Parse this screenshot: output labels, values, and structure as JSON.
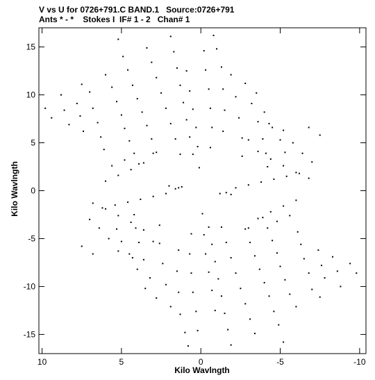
{
  "header": {
    "line1": "V vs U for 0726+791.C BAND.1   Source:0726+791",
    "line2": "Ants * - *    Stokes I  IF# 1 - 2   Chan# 1"
  },
  "chart_data": {
    "type": "scatter",
    "title": "V vs U for 0726+791.C BAND.1   Source:0726+791",
    "subtitle": "Ants * - *    Stokes I  IF# 1 - 2   Chan# 1",
    "xlabel": "Kilo Wavlngth",
    "ylabel": "Kilo Wavlngth",
    "xlim": [
      10.2,
      -10.4
    ],
    "ylim": [
      -17.0,
      17.0
    ],
    "x_reversed": true,
    "x_ticks": [
      10,
      5,
      0,
      -5,
      -10
    ],
    "y_ticks": [
      -15,
      -10,
      -5,
      0,
      5,
      10,
      15
    ],
    "grid": false,
    "marker": "small dot",
    "series": [
      {
        "values_note": "",
        "points": [
          [
            9.8,
            8.6
          ],
          [
            9.4,
            7.6
          ],
          [
            8.8,
            10.0
          ],
          [
            8.6,
            8.4
          ],
          [
            8.3,
            6.9
          ],
          [
            7.8,
            9.1
          ],
          [
            7.6,
            7.8
          ],
          [
            7.4,
            6.2
          ],
          [
            7.5,
            11.1
          ],
          [
            7.0,
            10.3
          ],
          [
            6.8,
            8.6
          ],
          [
            6.5,
            7.1
          ],
          [
            6.3,
            5.6
          ],
          [
            6.1,
            4.3
          ],
          [
            6.0,
            12.1
          ],
          [
            5.6,
            10.8
          ],
          [
            5.3,
            9.3
          ],
          [
            5.0,
            7.9
          ],
          [
            4.8,
            6.5
          ],
          [
            4.5,
            5.2
          ],
          [
            4.2,
            3.9
          ],
          [
            3.9,
            2.8
          ],
          [
            5.2,
            15.8
          ],
          [
            4.9,
            14.0
          ],
          [
            4.6,
            12.6
          ],
          [
            4.3,
            11.0
          ],
          [
            4.0,
            9.6
          ],
          [
            3.7,
            8.2
          ],
          [
            3.4,
            6.8
          ],
          [
            3.1,
            5.4
          ],
          [
            2.8,
            4.0
          ],
          [
            3.4,
            14.9
          ],
          [
            3.1,
            13.4
          ],
          [
            2.8,
            11.8
          ],
          [
            2.5,
            10.2
          ],
          [
            2.2,
            8.6
          ],
          [
            1.9,
            7.0
          ],
          [
            1.6,
            5.4
          ],
          [
            1.3,
            3.8
          ],
          [
            1.9,
            16.1
          ],
          [
            1.7,
            14.5
          ],
          [
            1.5,
            12.8
          ],
          [
            1.3,
            11.0
          ],
          [
            1.1,
            9.2
          ],
          [
            0.9,
            7.4
          ],
          [
            0.7,
            5.6
          ],
          [
            0.5,
            3.8
          ],
          [
            0.9,
            12.5
          ],
          [
            0.7,
            10.4
          ],
          [
            0.5,
            8.5
          ],
          [
            0.3,
            6.6
          ],
          [
            0.2,
            4.6
          ],
          [
            0.1,
            2.4
          ],
          [
            -0.2,
            14.6
          ],
          [
            -0.3,
            12.6
          ],
          [
            -0.5,
            10.6
          ],
          [
            -0.6,
            8.6
          ],
          [
            -0.7,
            6.6
          ],
          [
            -0.6,
            4.5
          ],
          [
            -0.8,
            16.2
          ],
          [
            -1.0,
            14.8
          ],
          [
            -1.3,
            12.9
          ],
          [
            -1.4,
            10.6
          ],
          [
            -1.5,
            8.4
          ],
          [
            -1.4,
            6.2
          ],
          [
            -1.9,
            12.1
          ],
          [
            -2.2,
            9.8
          ],
          [
            -2.4,
            7.6
          ],
          [
            -2.6,
            5.5
          ],
          [
            -2.6,
            3.6
          ],
          [
            -2.8,
            11.2
          ],
          [
            -3.2,
            9.1
          ],
          [
            -3.6,
            7.2
          ],
          [
            -3.9,
            5.4
          ],
          [
            -4.1,
            3.9
          ],
          [
            -4.2,
            2.5
          ],
          [
            -3.5,
            10.2
          ],
          [
            -4.0,
            8.2
          ],
          [
            -4.5,
            6.6
          ],
          [
            -5.0,
            5.3
          ],
          [
            -5.3,
            4.0
          ],
          [
            -4.3,
            7.0
          ],
          [
            -5.2,
            6.3
          ],
          [
            -5.8,
            5.0
          ],
          [
            -6.4,
            3.9
          ],
          [
            -7.0,
            3.0
          ],
          [
            -7.5,
            5.8
          ],
          [
            -6.8,
            6.6
          ],
          [
            -3.0,
            5.3
          ],
          [
            -3.6,
            4.1
          ],
          [
            -4.4,
            3.3
          ],
          [
            -5.2,
            2.6
          ],
          [
            -6.0,
            1.9
          ],
          [
            -6.8,
            1.3
          ],
          [
            3.0,
            3.9
          ],
          [
            3.6,
            2.9
          ],
          [
            4.4,
            2.2
          ],
          [
            5.2,
            1.6
          ],
          [
            6.0,
            1.0
          ],
          [
            4.8,
            3.2
          ],
          [
            5.6,
            2.6
          ],
          [
            -2.2,
            0.3
          ],
          [
            -3.0,
            0.6
          ],
          [
            -3.8,
            0.9
          ],
          [
            -4.6,
            1.2
          ],
          [
            -5.4,
            1.5
          ],
          [
            -6.2,
            1.8
          ],
          [
            2.2,
            -0.3
          ],
          [
            3.0,
            -0.6
          ],
          [
            3.8,
            -0.9
          ],
          [
            4.6,
            -1.2
          ],
          [
            5.4,
            -1.5
          ],
          [
            6.2,
            -1.8
          ],
          [
            1.4,
            0.3
          ],
          [
            2.0,
            0.5
          ],
          [
            1.2,
            0.4
          ],
          [
            1.6,
            0.2
          ],
          [
            -1.2,
            -0.3
          ],
          [
            -1.6,
            -0.2
          ],
          [
            -1.9,
            -0.4
          ],
          [
            -9.8,
            -8.6
          ],
          [
            -9.4,
            -7.6
          ],
          [
            -8.8,
            -10.0
          ],
          [
            -8.6,
            -8.4
          ],
          [
            -8.3,
            -6.9
          ],
          [
            -7.8,
            -9.1
          ],
          [
            -7.6,
            -7.8
          ],
          [
            -7.4,
            -6.2
          ],
          [
            -7.5,
            -11.1
          ],
          [
            -7.0,
            -10.3
          ],
          [
            -6.8,
            -8.6
          ],
          [
            -6.5,
            -7.1
          ],
          [
            -6.3,
            -5.6
          ],
          [
            -6.1,
            -4.3
          ],
          [
            -6.0,
            -12.1
          ],
          [
            -5.6,
            -10.8
          ],
          [
            -5.3,
            -9.3
          ],
          [
            -5.0,
            -7.9
          ],
          [
            -4.8,
            -6.5
          ],
          [
            -4.5,
            -5.2
          ],
          [
            -4.2,
            -3.9
          ],
          [
            -3.9,
            -2.8
          ],
          [
            -5.2,
            -15.8
          ],
          [
            -4.9,
            -14.0
          ],
          [
            -4.6,
            -12.6
          ],
          [
            -4.3,
            -11.0
          ],
          [
            -4.0,
            -9.6
          ],
          [
            -3.7,
            -8.2
          ],
          [
            -3.4,
            -6.8
          ],
          [
            -3.1,
            -5.4
          ],
          [
            -2.8,
            -4.0
          ],
          [
            -3.4,
            -14.9
          ],
          [
            -3.1,
            -13.4
          ],
          [
            -2.8,
            -11.8
          ],
          [
            -2.5,
            -10.2
          ],
          [
            -2.2,
            -8.6
          ],
          [
            -1.9,
            -7.0
          ],
          [
            -1.6,
            -5.4
          ],
          [
            -1.3,
            -3.8
          ],
          [
            -1.9,
            -16.1
          ],
          [
            -1.7,
            -14.5
          ],
          [
            -1.5,
            -12.8
          ],
          [
            -1.3,
            -11.0
          ],
          [
            -1.1,
            -9.2
          ],
          [
            -0.9,
            -7.4
          ],
          [
            -0.7,
            -5.6
          ],
          [
            -0.5,
            -3.8
          ],
          [
            -0.9,
            -12.5
          ],
          [
            -0.7,
            -10.4
          ],
          [
            -0.5,
            -8.5
          ],
          [
            -0.3,
            -6.6
          ],
          [
            -0.2,
            -4.6
          ],
          [
            -0.1,
            -2.4
          ],
          [
            0.2,
            -14.6
          ],
          [
            0.3,
            -12.6
          ],
          [
            0.5,
            -10.6
          ],
          [
            0.6,
            -8.6
          ],
          [
            0.7,
            -6.6
          ],
          [
            0.6,
            -4.5
          ],
          [
            0.8,
            -16.2
          ],
          [
            1.0,
            -14.8
          ],
          [
            1.3,
            -12.9
          ],
          [
            1.4,
            -10.6
          ],
          [
            1.5,
            -8.4
          ],
          [
            1.4,
            -6.2
          ],
          [
            1.9,
            -12.1
          ],
          [
            2.2,
            -9.8
          ],
          [
            2.4,
            -7.6
          ],
          [
            2.6,
            -5.5
          ],
          [
            2.6,
            -3.6
          ],
          [
            2.8,
            -11.2
          ],
          [
            3.2,
            -9.1
          ],
          [
            3.6,
            -7.2
          ],
          [
            3.9,
            -5.4
          ],
          [
            4.1,
            -3.9
          ],
          [
            4.2,
            -2.5
          ],
          [
            3.5,
            -10.2
          ],
          [
            4.0,
            -8.2
          ],
          [
            4.5,
            -6.6
          ],
          [
            5.0,
            -5.3
          ],
          [
            5.3,
            -4.0
          ],
          [
            4.3,
            -7.0
          ],
          [
            5.2,
            -6.3
          ],
          [
            5.8,
            -5.0
          ],
          [
            6.4,
            -3.9
          ],
          [
            7.0,
            -3.0
          ],
          [
            7.5,
            -5.8
          ],
          [
            6.8,
            -6.6
          ],
          [
            3.0,
            -5.3
          ],
          [
            3.6,
            -4.1
          ],
          [
            4.4,
            -3.3
          ],
          [
            5.2,
            -2.6
          ],
          [
            6.0,
            -1.9
          ],
          [
            6.8,
            -1.3
          ],
          [
            -3.0,
            -3.9
          ],
          [
            -3.6,
            -2.9
          ],
          [
            -4.4,
            -2.2
          ],
          [
            -5.2,
            -1.6
          ],
          [
            -6.0,
            -1.0
          ],
          [
            -4.8,
            -3.2
          ],
          [
            -5.6,
            -2.6
          ]
        ]
      }
    ]
  }
}
